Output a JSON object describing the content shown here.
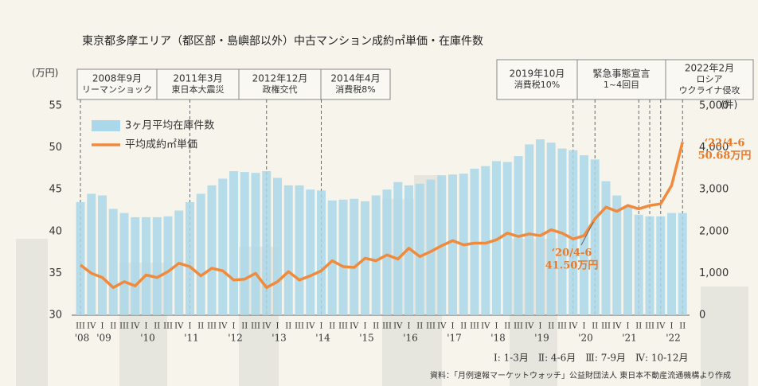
{
  "chart_data": {
    "type": "combo",
    "title": "東京都多摩エリア（都区部・島嶼部以外）中古マンション成約㎡単価・在庫件数",
    "y_unit": "(万円)",
    "y2_unit": "(件)",
    "categories": [
      "III",
      "IV",
      "I",
      "II",
      "III",
      "IV",
      "I",
      "II",
      "III",
      "IV",
      "I",
      "II",
      "III",
      "IV",
      "I",
      "II",
      "III",
      "IV",
      "I",
      "II",
      "III",
      "IV",
      "I",
      "II",
      "III",
      "IV",
      "I",
      "II",
      "III",
      "IV",
      "I",
      "II",
      "III",
      "IV",
      "I",
      "II",
      "III",
      "IV",
      "I",
      "II",
      "III",
      "IV",
      "I",
      "II",
      "III",
      "IV",
      "I",
      "II",
      "III",
      "IV",
      "I",
      "II",
      "III",
      "IV",
      "I",
      "II"
    ],
    "years": [
      "'08",
      null,
      "'09",
      null,
      null,
      null,
      "'10",
      null,
      null,
      null,
      "'11",
      null,
      null,
      null,
      "'12",
      null,
      null,
      null,
      "'13",
      null,
      null,
      null,
      "'14",
      null,
      null,
      null,
      "'15",
      null,
      null,
      null,
      "'16",
      null,
      null,
      null,
      "'17",
      null,
      null,
      null,
      "'18",
      null,
      null,
      null,
      "'19",
      null,
      null,
      null,
      "'20",
      null,
      null,
      null,
      "'21",
      null,
      null,
      null,
      "'22",
      null
    ],
    "ylim": [
      30,
      55
    ],
    "yticks": [
      30,
      35,
      40,
      45,
      50,
      55
    ],
    "y2lim": [
      0,
      5000
    ],
    "y2ticks": [
      0,
      {
        "value": 1000,
        "label": "1,000"
      },
      {
        "value": 2000,
        "label": "2,000"
      },
      {
        "value": 3000,
        "label": "3,000"
      },
      {
        "value": 4000,
        "label": "4,000"
      },
      {
        "value": 5000,
        "label": "5,000"
      }
    ],
    "series": [
      {
        "name": "3ヶ月平均在庫件数",
        "type": "bar",
        "axis": "y2",
        "color": "#aad7ea",
        "values": [
          2700,
          2900,
          2860,
          2540,
          2440,
          2340,
          2340,
          2340,
          2360,
          2500,
          2700,
          2900,
          3100,
          3260,
          3440,
          3420,
          3400,
          3440,
          3280,
          3100,
          3100,
          3000,
          2980,
          2740,
          2760,
          2780,
          2720,
          2860,
          3000,
          3180,
          3100,
          3140,
          3240,
          3340,
          3360,
          3380,
          3500,
          3560,
          3680,
          3660,
          3800,
          4080,
          4200,
          4120,
          3980,
          3940,
          3820,
          3720,
          3200,
          2860,
          2600,
          2400,
          2360,
          2360,
          2440,
          2440
        ]
      },
      {
        "name": "平均成約㎡単価",
        "type": "line",
        "axis": "y",
        "color": "#f08a3c",
        "values": [
          36.0,
          35.0,
          34.5,
          33.3,
          34.0,
          33.5,
          34.8,
          34.5,
          35.2,
          36.2,
          35.8,
          34.7,
          35.6,
          35.3,
          34.2,
          34.3,
          35.0,
          33.3,
          34.0,
          35.2,
          34.2,
          34.7,
          35.3,
          36.5,
          35.8,
          35.7,
          36.8,
          36.5,
          37.2,
          36.7,
          38.0,
          37.0,
          37.6,
          38.3,
          38.9,
          38.4,
          38.6,
          38.6,
          39.0,
          39.8,
          39.4,
          39.7,
          39.5,
          40.2,
          39.8,
          39.1,
          39.5,
          41.5,
          42.9,
          42.4,
          43.1,
          42.7,
          43.1,
          43.3,
          45.5,
          50.68
        ]
      }
    ],
    "events": [
      {
        "lines": [
          "2008年9月",
          "リーマンショック"
        ],
        "at": [
          0
        ]
      },
      {
        "lines": [
          "2011年3月",
          "東日本大震災"
        ],
        "at": [
          10
        ]
      },
      {
        "lines": [
          "2012年12月",
          "政権交代"
        ],
        "at": [
          17
        ]
      },
      {
        "lines": [
          "2014年4月",
          "消費税8%"
        ],
        "at": [
          22
        ]
      },
      {
        "lines": [
          "2019年10月",
          "消費税10%"
        ],
        "at": [
          45
        ]
      },
      {
        "lines": [
          "緊急事態宣言",
          "1~4回目"
        ],
        "at": [
          47,
          51,
          52,
          53
        ]
      },
      {
        "lines": [
          "2022年2月",
          "ロシア",
          "ウクライナ侵攻"
        ],
        "at": [
          55
        ]
      }
    ],
    "annotations": [
      {
        "lines": [
          "‘20/4-6",
          "41.50万円"
        ],
        "at": 47
      },
      {
        "lines": [
          "‘22/4-6",
          "50.68万円"
        ],
        "at": 55
      }
    ],
    "quarter_note": "Ⅰ: 1-3月　Ⅱ: 4-6月　Ⅲ: 7-9月　Ⅳ: 10-12月",
    "source": "資料：「月例速報マーケットウォッチ」公益財団法人 東日本不動産流通機構より作成"
  }
}
